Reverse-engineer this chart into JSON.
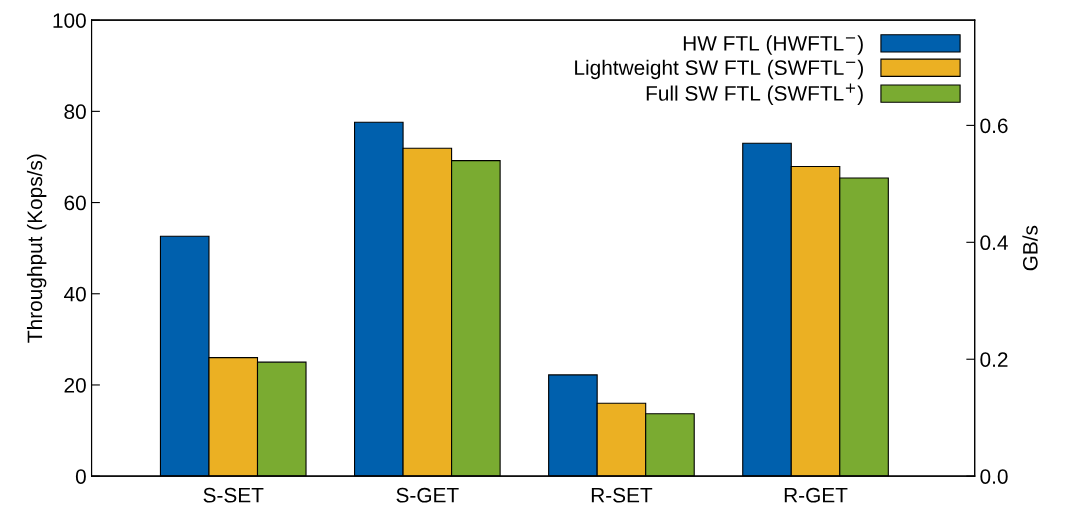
{
  "chart_data": {
    "type": "bar",
    "categories": [
      "S-SET",
      "S-GET",
      "R-SET",
      "R-GET"
    ],
    "series": [
      {
        "name": "HW FTL (HWFTL$^{−}$)",
        "color": "#0060ad",
        "values": [
          52.6,
          77.6,
          22.2,
          73.0
        ]
      },
      {
        "name": "Lightweight SW FTL (SWFTL$^{−}$)",
        "color": "#ebb023",
        "values": [
          26.0,
          71.9,
          16.0,
          67.9
        ]
      },
      {
        "name": "Full SW FTL (SWFTL$^{+}$)",
        "color": "#7aab31",
        "values": [
          25.0,
          69.2,
          13.7,
          65.4
        ]
      }
    ],
    "ylabel": "Throughput (Kops/s)",
    "y2label": "GB/s",
    "ylim": [
      0,
      100
    ],
    "yticks": [
      0,
      20,
      40,
      60,
      80,
      100
    ],
    "y2lim": [
      0,
      0.78
    ],
    "y2ticks": [
      {
        "value": 0,
        "label": "0.0"
      },
      0.2,
      0.4,
      0.6
    ],
    "legend": "top right",
    "grid": false
  }
}
